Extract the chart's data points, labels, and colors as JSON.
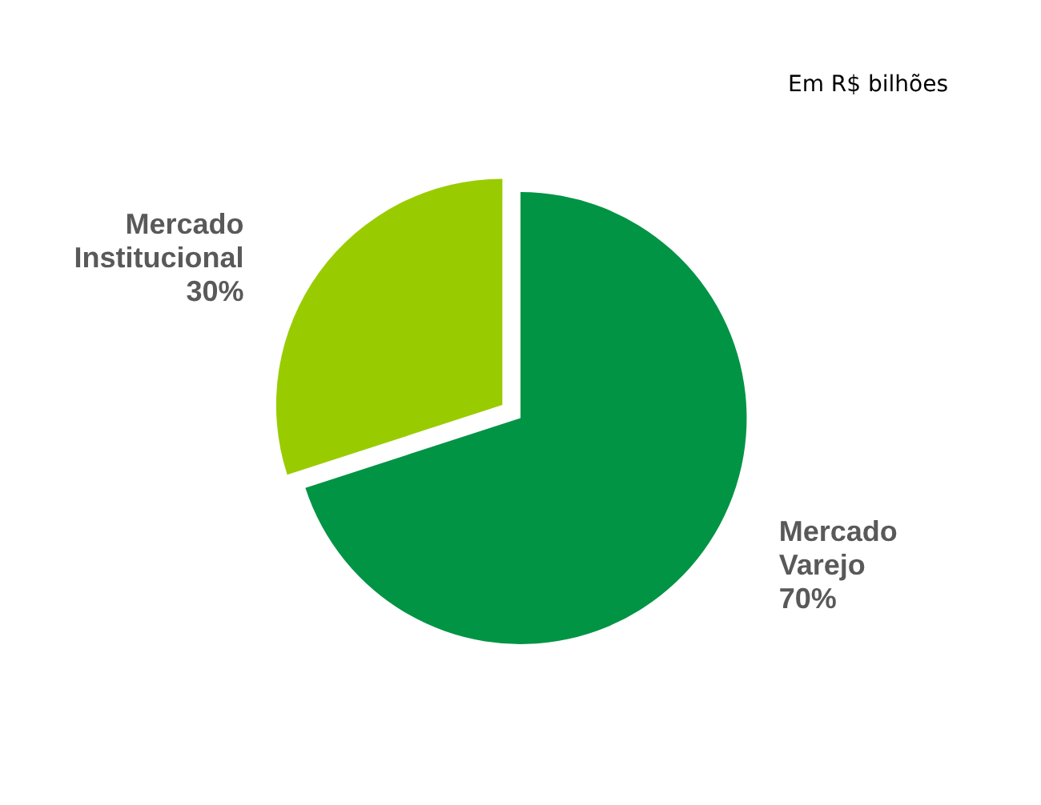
{
  "chart_data": {
    "type": "pie",
    "categories": [
      "Mercado Varejo",
      "Mercado Institucional"
    ],
    "values": [
      70,
      30
    ],
    "colors": [
      "#009444",
      "#99cc00"
    ],
    "value_labels": [
      "70%",
      "30%"
    ],
    "legend": false,
    "annotations": [
      "Em R$ bilhões"
    ]
  }
}
